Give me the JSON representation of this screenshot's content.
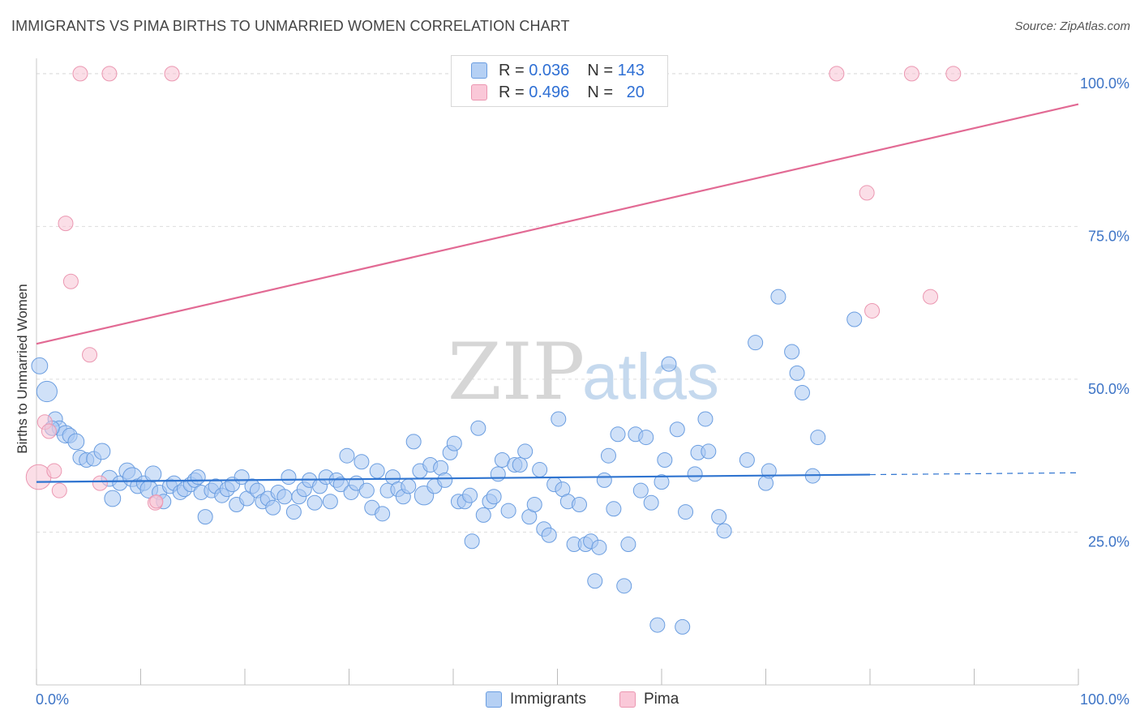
{
  "title": "IMMIGRANTS VS PIMA BIRTHS TO UNMARRIED WOMEN CORRELATION CHART",
  "source": "Source: ZipAtlas.com",
  "watermark": {
    "zip": "ZIP",
    "atlas": "atlas"
  },
  "legend": {
    "rows": [
      {
        "r_label": "R =",
        "r_value": "0.036",
        "n_label": "N =",
        "n_value": "143"
      },
      {
        "r_label": "R =",
        "r_value": "0.496",
        "n_label": "N =",
        "n_value": "20"
      }
    ],
    "bottom": [
      {
        "label": "Immigrants"
      },
      {
        "label": "Pima"
      }
    ]
  },
  "colors": {
    "immigrants_fill": "#a9c8f2",
    "immigrants_stroke": "#6a9de0",
    "immigrants_line": "#2f74d0",
    "pima_fill": "#f7c3d3",
    "pima_stroke": "#eb97b1",
    "pima_line": "#e26a94",
    "axis_label": "#3d74c6",
    "grid": "#dddddd"
  },
  "chart_data": {
    "type": "scatter",
    "title": "IMMIGRANTS VS PIMA BIRTHS TO UNMARRIED WOMEN CORRELATION CHART",
    "xlabel": "",
    "ylabel": "Births to Unmarried Women",
    "xlim": [
      0,
      100
    ],
    "ylim": [
      0,
      102.5
    ],
    "x_tick_labels": [
      "0.0%",
      "100.0%"
    ],
    "y_ticks": [
      25,
      50,
      75,
      100
    ],
    "y_tick_labels": [
      "25.0%",
      "50.0%",
      "75.0%",
      "100.0%"
    ],
    "series": [
      {
        "name": "Immigrants",
        "r": 0.036,
        "n": 143,
        "trend": {
          "x0": 0,
          "y0": 33.2,
          "x1": 80,
          "y1": 34.4,
          "dashed_to_x": 100,
          "dashed_to_y": 34.7
        },
        "points": [
          [
            0.3,
            52.2,
            1.1
          ],
          [
            1.0,
            48.0,
            1.4
          ],
          [
            1.8,
            43.5,
            1.0
          ],
          [
            2.2,
            42.0,
            1.0
          ],
          [
            2.8,
            41.0,
            1.2
          ],
          [
            3.2,
            40.8,
            1.0
          ],
          [
            3.8,
            39.8,
            1.1
          ],
          [
            4.2,
            37.2,
            1.0
          ],
          [
            4.8,
            36.8,
            1.0
          ],
          [
            5.5,
            37.0,
            1.0
          ],
          [
            6.3,
            38.2,
            1.1
          ],
          [
            7.0,
            33.8,
            1.1
          ],
          [
            7.3,
            30.5,
            1.1
          ],
          [
            8.0,
            33.0,
            1.0
          ],
          [
            8.7,
            35.0,
            1.1
          ],
          [
            9.2,
            34.0,
            1.3
          ],
          [
            9.7,
            32.5,
            1.0
          ],
          [
            10.3,
            33.0,
            1.0
          ],
          [
            10.8,
            32.0,
            1.2
          ],
          [
            11.2,
            34.5,
            1.1
          ],
          [
            11.8,
            31.5,
            1.0
          ],
          [
            12.2,
            30.0,
            1.0
          ],
          [
            12.8,
            32.5,
            1.0
          ],
          [
            13.2,
            33.0,
            1.0
          ],
          [
            13.8,
            31.5,
            1.0
          ],
          [
            14.2,
            32.0,
            1.0
          ],
          [
            14.8,
            32.8,
            1.0
          ],
          [
            15.2,
            33.5,
            1.0
          ],
          [
            15.5,
            34.0,
            1.0
          ],
          [
            15.8,
            31.5,
            1.0
          ],
          [
            16.2,
            27.5,
            1.0
          ],
          [
            16.8,
            31.8,
            1.0
          ],
          [
            17.2,
            32.5,
            1.0
          ],
          [
            17.8,
            31.0,
            1.0
          ],
          [
            18.3,
            32.0,
            1.0
          ],
          [
            18.8,
            32.8,
            1.0
          ],
          [
            19.2,
            29.5,
            1.0
          ],
          [
            19.7,
            34.0,
            1.0
          ],
          [
            20.2,
            30.5,
            1.0
          ],
          [
            20.7,
            32.5,
            1.0
          ],
          [
            21.2,
            31.8,
            1.0
          ],
          [
            21.7,
            30.0,
            1.0
          ],
          [
            22.2,
            30.5,
            1.0
          ],
          [
            22.7,
            29.0,
            1.0
          ],
          [
            23.2,
            31.5,
            1.0
          ],
          [
            23.8,
            30.8,
            1.0
          ],
          [
            24.2,
            34.0,
            1.0
          ],
          [
            24.7,
            28.3,
            1.0
          ],
          [
            25.2,
            30.8,
            1.0
          ],
          [
            25.7,
            32.0,
            1.0
          ],
          [
            26.2,
            33.5,
            1.0
          ],
          [
            26.7,
            29.8,
            1.0
          ],
          [
            27.2,
            32.5,
            1.0
          ],
          [
            27.8,
            34.0,
            1.0
          ],
          [
            28.2,
            30.0,
            1.0
          ],
          [
            28.8,
            33.5,
            1.0
          ],
          [
            29.2,
            32.8,
            1.0
          ],
          [
            29.8,
            37.5,
            1.0
          ],
          [
            30.2,
            31.5,
            1.0
          ],
          [
            30.7,
            33.0,
            1.0
          ],
          [
            31.2,
            36.5,
            1.0
          ],
          [
            31.7,
            31.8,
            1.0
          ],
          [
            32.2,
            29.0,
            1.0
          ],
          [
            32.7,
            35.0,
            1.0
          ],
          [
            33.2,
            28.0,
            1.0
          ],
          [
            33.7,
            31.8,
            1.0
          ],
          [
            34.2,
            34.0,
            1.0
          ],
          [
            34.7,
            32.0,
            1.0
          ],
          [
            35.2,
            30.8,
            1.0
          ],
          [
            35.7,
            32.5,
            1.0
          ],
          [
            36.2,
            39.8,
            1.0
          ],
          [
            36.8,
            35.0,
            1.0
          ],
          [
            37.2,
            31.0,
            1.3
          ],
          [
            37.8,
            36.0,
            1.0
          ],
          [
            38.2,
            32.5,
            1.0
          ],
          [
            38.8,
            35.5,
            1.0
          ],
          [
            39.2,
            33.5,
            1.0
          ],
          [
            39.7,
            38.0,
            1.0
          ],
          [
            40.1,
            39.5,
            1.0
          ],
          [
            40.5,
            30.0,
            1.0
          ],
          [
            41.1,
            30.0,
            1.0
          ],
          [
            41.6,
            31.0,
            1.0
          ],
          [
            41.8,
            23.5,
            1.0
          ],
          [
            42.4,
            42.0,
            1.0
          ],
          [
            42.9,
            27.8,
            1.0
          ],
          [
            43.5,
            30.0,
            1.0
          ],
          [
            43.9,
            30.8,
            1.0
          ],
          [
            44.3,
            34.5,
            1.0
          ],
          [
            44.7,
            36.8,
            1.0
          ],
          [
            45.3,
            28.5,
            1.0
          ],
          [
            45.9,
            36.0,
            1.0
          ],
          [
            46.4,
            36.0,
            1.0
          ],
          [
            46.9,
            38.2,
            1.0
          ],
          [
            47.3,
            27.5,
            1.0
          ],
          [
            47.8,
            29.5,
            1.0
          ],
          [
            48.3,
            35.2,
            1.0
          ],
          [
            48.7,
            25.5,
            1.0
          ],
          [
            49.2,
            24.5,
            1.0
          ],
          [
            49.7,
            32.8,
            1.0
          ],
          [
            50.1,
            43.5,
            1.0
          ],
          [
            50.5,
            32.0,
            1.0
          ],
          [
            51.0,
            30.0,
            1.0
          ],
          [
            51.6,
            23.0,
            1.0
          ],
          [
            52.1,
            29.5,
            1.0
          ],
          [
            52.7,
            23.0,
            1.0
          ],
          [
            53.2,
            23.5,
            1.0
          ],
          [
            53.6,
            17.0,
            1.0
          ],
          [
            54.0,
            22.5,
            1.0
          ],
          [
            54.5,
            33.5,
            1.0
          ],
          [
            54.9,
            37.5,
            1.0
          ],
          [
            55.4,
            28.8,
            1.0
          ],
          [
            55.8,
            41.0,
            1.0
          ],
          [
            56.4,
            16.2,
            1.0
          ],
          [
            56.8,
            23.0,
            1.0
          ],
          [
            57.5,
            41.0,
            1.0
          ],
          [
            58.0,
            31.8,
            1.0
          ],
          [
            58.5,
            40.5,
            1.0
          ],
          [
            59.0,
            29.8,
            1.0
          ],
          [
            59.6,
            9.8,
            1.0
          ],
          [
            60.0,
            33.2,
            1.0
          ],
          [
            60.3,
            36.8,
            1.0
          ],
          [
            60.7,
            52.5,
            1.0
          ],
          [
            61.5,
            41.8,
            1.0
          ],
          [
            62.0,
            9.5,
            1.0
          ],
          [
            62.3,
            28.3,
            1.0
          ],
          [
            63.2,
            34.5,
            1.0
          ],
          [
            63.5,
            38.0,
            1.0
          ],
          [
            64.2,
            43.5,
            1.0
          ],
          [
            64.5,
            38.2,
            1.0
          ],
          [
            65.5,
            27.5,
            1.0
          ],
          [
            66.0,
            25.2,
            1.0
          ],
          [
            68.2,
            36.8,
            1.0
          ],
          [
            69.0,
            56.0,
            1.0
          ],
          [
            70.0,
            33.0,
            1.0
          ],
          [
            70.3,
            35.0,
            1.0
          ],
          [
            71.2,
            63.5,
            1.0
          ],
          [
            72.5,
            54.5,
            1.0
          ],
          [
            73.0,
            51.0,
            1.0
          ],
          [
            73.5,
            47.8,
            1.0
          ],
          [
            74.5,
            34.2,
            1.0
          ],
          [
            75.0,
            40.5,
            1.0
          ],
          [
            78.5,
            59.8,
            1.0
          ],
          [
            1.5,
            42.0,
            1.0
          ]
        ]
      },
      {
        "name": "Pima",
        "r": 0.496,
        "n": 20,
        "trend": {
          "x0": 0,
          "y0": 55.8,
          "x1": 100,
          "y1": 95.0
        },
        "points": [
          [
            0.2,
            34.0,
            1.7
          ],
          [
            0.8,
            43.0,
            1.0
          ],
          [
            1.2,
            41.5,
            1.0
          ],
          [
            1.7,
            35.0,
            1.0
          ],
          [
            2.2,
            31.8,
            1.0
          ],
          [
            2.8,
            75.5,
            1.0
          ],
          [
            3.3,
            66.0,
            1.0
          ],
          [
            5.1,
            54.0,
            1.0
          ],
          [
            6.1,
            33.0,
            1.0
          ],
          [
            11.4,
            29.8,
            1.0
          ],
          [
            4.2,
            100.0,
            1.0
          ],
          [
            7.0,
            100.0,
            1.0
          ],
          [
            13.0,
            100.0,
            1.0
          ],
          [
            76.8,
            100.0,
            1.0
          ],
          [
            84.0,
            100.0,
            1.0
          ],
          [
            88.0,
            100.0,
            1.0
          ],
          [
            79.7,
            80.5,
            1.0
          ],
          [
            80.2,
            61.2,
            1.0
          ],
          [
            85.8,
            63.5,
            1.0
          ],
          [
            11.5,
            30.0,
            0.9
          ]
        ]
      }
    ]
  }
}
